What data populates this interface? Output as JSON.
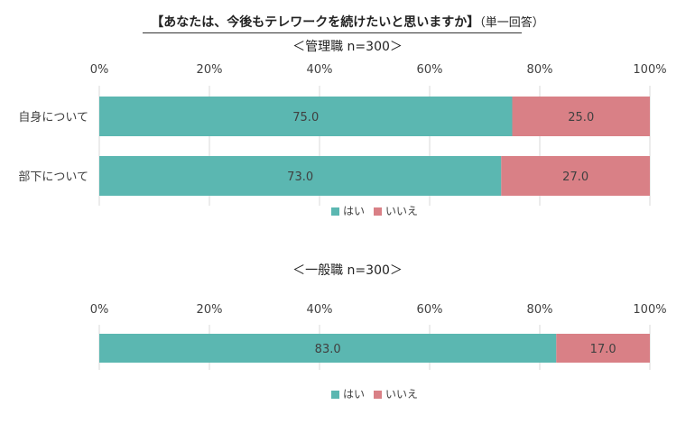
{
  "title": {
    "main": "【あなたは、今後もテレワークを続けたいと思いますか】",
    "sub": "（単一回答）"
  },
  "colors": {
    "yes": "#5bb7b1",
    "no": "#d98086",
    "grid": "#d9d9d9",
    "text": "#404040"
  },
  "chart_data": [
    {
      "type": "bar",
      "orientation": "horizontal",
      "stacked": true,
      "percent": true,
      "title": "＜管理職 n=300＞",
      "categories": [
        "自身について",
        "部下について"
      ],
      "series": [
        {
          "name": "はい",
          "values": [
            75.0,
            73.0
          ]
        },
        {
          "name": "いいえ",
          "values": [
            25.0,
            27.0
          ]
        }
      ],
      "xlim": [
        0,
        100
      ],
      "xticks": [
        "0%",
        "20%",
        "40%",
        "60%",
        "80%",
        "100%"
      ],
      "grid": true,
      "legend": "bottom"
    },
    {
      "type": "bar",
      "orientation": "horizontal",
      "stacked": true,
      "percent": true,
      "title": "＜一般職 n=300＞",
      "categories": [
        ""
      ],
      "series": [
        {
          "name": "はい",
          "values": [
            83.0
          ]
        },
        {
          "name": "いいえ",
          "values": [
            17.0
          ]
        }
      ],
      "xlim": [
        0,
        100
      ],
      "xticks": [
        "0%",
        "20%",
        "40%",
        "60%",
        "80%",
        "100%"
      ],
      "grid": true,
      "legend": "bottom"
    }
  ]
}
